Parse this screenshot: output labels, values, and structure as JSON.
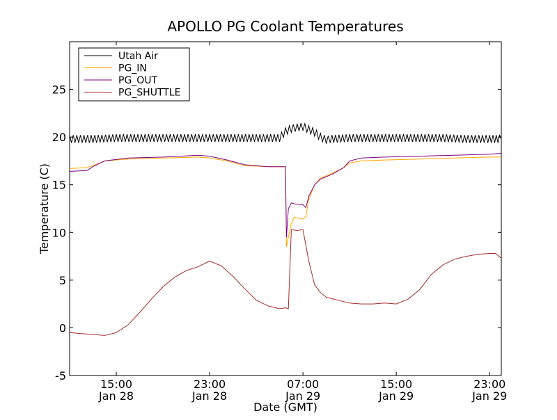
{
  "chart_data": {
    "type": "line",
    "title": "APOLLO PG Coolant Temperatures",
    "xlabel": "Date (GMT)",
    "ylabel": "Temperature (C)",
    "xlim": [
      "2013-01-28T11:00",
      "2013-01-30T00:00"
    ],
    "ylim": [
      -5,
      30
    ],
    "y_ticks": [
      -5,
      0,
      5,
      10,
      15,
      20,
      25
    ],
    "y_tick_labels": [
      "-5",
      "0",
      "5",
      "10",
      "15",
      "20",
      "25"
    ],
    "x_ticks": [
      {
        "x": "2013-01-28T15:00",
        "time": "15:00",
        "date": "Jan 28"
      },
      {
        "x": "2013-01-28T23:00",
        "time": "23:00",
        "date": "Jan 28"
      },
      {
        "x": "2013-01-29T07:00",
        "time": "07:00",
        "date": "Jan 29"
      },
      {
        "x": "2013-01-29T15:00",
        "time": "15:00",
        "date": "Jan 29"
      },
      {
        "x": "2013-01-29T23:00",
        "time": "23:00",
        "date": "Jan 29"
      }
    ],
    "grid": false,
    "legend_position": "top-left",
    "series": [
      {
        "name": "Utah Air",
        "color": "#000000",
        "oscillation_amplitude": 0.4,
        "x": [
          "2013-01-28T11:00",
          "2013-01-28T13:00",
          "2013-01-28T15:00",
          "2013-01-28T17:00",
          "2013-01-28T19:00",
          "2013-01-28T21:00",
          "2013-01-28T23:00",
          "2013-01-29T01:00",
          "2013-01-29T03:00",
          "2013-01-29T05:00",
          "2013-01-29T05:30",
          "2013-01-29T06:00",
          "2013-01-29T06:30",
          "2013-01-29T07:00",
          "2013-01-29T07:30",
          "2013-01-29T08:00",
          "2013-01-29T08:30",
          "2013-01-29T09:00",
          "2013-01-29T09:20",
          "2013-01-29T11:00",
          "2013-01-29T13:00",
          "2013-01-29T15:00",
          "2013-01-29T17:00",
          "2013-01-29T19:00",
          "2013-01-29T21:00",
          "2013-01-29T23:00",
          "2013-01-30T00:00"
        ],
        "y": [
          19.8,
          19.8,
          19.9,
          19.9,
          19.9,
          19.9,
          19.9,
          19.9,
          19.9,
          19.9,
          20.6,
          20.9,
          21.0,
          21.1,
          20.8,
          20.5,
          20.0,
          19.7,
          19.8,
          19.9,
          19.9,
          19.9,
          19.9,
          19.9,
          19.8,
          19.8,
          19.8
        ]
      },
      {
        "name": "PG_IN",
        "color": "#FFA500",
        "x": [
          "2013-01-28T11:00",
          "2013-01-28T12:30",
          "2013-01-28T13:00",
          "2013-01-28T14:00",
          "2013-01-28T16:00",
          "2013-01-28T19:00",
          "2013-01-28T22:00",
          "2013-01-28T23:00",
          "2013-01-29T00:30",
          "2013-01-29T02:00",
          "2013-01-29T04:00",
          "2013-01-29T05:30",
          "2013-01-29T05:35",
          "2013-01-29T05:45",
          "2013-01-29T06:00",
          "2013-01-29T06:15",
          "2013-01-29T07:00",
          "2013-01-29T07:15",
          "2013-01-29T07:30",
          "2013-01-29T08:00",
          "2013-01-29T08:30",
          "2013-01-29T09:30",
          "2013-01-29T10:30",
          "2013-01-29T11:00",
          "2013-01-29T12:00",
          "2013-01-29T14:00",
          "2013-01-29T17:00",
          "2013-01-29T20:00",
          "2013-01-29T23:00",
          "2013-01-30T00:00"
        ],
        "y": [
          16.7,
          16.8,
          17.0,
          17.5,
          17.7,
          17.8,
          17.9,
          17.8,
          17.5,
          17.0,
          16.9,
          16.9,
          8.5,
          9.5,
          10.9,
          11.6,
          11.4,
          11.7,
          13.5,
          15.0,
          15.7,
          16.2,
          16.8,
          17.3,
          17.5,
          17.6,
          17.7,
          17.8,
          17.9,
          17.9
        ]
      },
      {
        "name": "PG_OUT",
        "color": "#800080",
        "x": [
          "2013-01-28T11:00",
          "2013-01-28T12:30",
          "2013-01-28T13:00",
          "2013-01-28T14:00",
          "2013-01-28T16:00",
          "2013-01-28T19:00",
          "2013-01-28T22:00",
          "2013-01-28T23:00",
          "2013-01-29T00:30",
          "2013-01-29T02:00",
          "2013-01-29T04:00",
          "2013-01-29T05:30",
          "2013-01-29T05:35",
          "2013-01-29T05:45",
          "2013-01-29T06:00",
          "2013-01-29T06:15",
          "2013-01-29T07:00",
          "2013-01-29T07:15",
          "2013-01-29T07:30",
          "2013-01-29T08:00",
          "2013-01-29T08:30",
          "2013-01-29T09:30",
          "2013-01-29T10:30",
          "2013-01-29T11:00",
          "2013-01-29T12:00",
          "2013-01-29T14:00",
          "2013-01-29T17:00",
          "2013-01-29T20:00",
          "2013-01-29T23:00",
          "2013-01-30T00:00"
        ],
        "y": [
          16.4,
          16.5,
          16.9,
          17.5,
          17.8,
          17.9,
          18.1,
          18.0,
          17.6,
          17.1,
          16.9,
          16.9,
          9.5,
          12.5,
          13.1,
          13.0,
          12.9,
          12.6,
          13.8,
          15.0,
          15.6,
          16.1,
          16.8,
          17.5,
          17.8,
          17.9,
          18.0,
          18.1,
          18.2,
          18.3
        ]
      },
      {
        "name": "PG_SHUTTLE",
        "color": "#A52A2A",
        "x": [
          "2013-01-28T11:00",
          "2013-01-28T12:00",
          "2013-01-28T13:00",
          "2013-01-28T14:00",
          "2013-01-28T15:00",
          "2013-01-28T16:00",
          "2013-01-28T17:00",
          "2013-01-28T18:00",
          "2013-01-28T19:00",
          "2013-01-28T20:00",
          "2013-01-28T21:00",
          "2013-01-28T22:00",
          "2013-01-28T23:00",
          "2013-01-29T00:00",
          "2013-01-29T01:00",
          "2013-01-29T02:00",
          "2013-01-29T03:00",
          "2013-01-29T04:00",
          "2013-01-29T05:00",
          "2013-01-29T05:30",
          "2013-01-29T05:45",
          "2013-01-29T06:00",
          "2013-01-29T06:30",
          "2013-01-29T07:00",
          "2013-01-29T07:30",
          "2013-01-29T08:00",
          "2013-01-29T08:30",
          "2013-01-29T09:00",
          "2013-01-29T10:00",
          "2013-01-29T11:00",
          "2013-01-29T12:00",
          "2013-01-29T13:00",
          "2013-01-29T14:00",
          "2013-01-29T15:00",
          "2013-01-29T16:00",
          "2013-01-29T17:00",
          "2013-01-29T18:00",
          "2013-01-29T19:00",
          "2013-01-29T20:00",
          "2013-01-29T21:00",
          "2013-01-29T22:00",
          "2013-01-29T23:00",
          "2013-01-29T23:30",
          "2013-01-30T00:00"
        ],
        "y": [
          -0.5,
          -0.6,
          -0.7,
          -0.8,
          -0.5,
          0.3,
          1.6,
          3.0,
          4.3,
          5.3,
          6.0,
          6.4,
          7.0,
          6.5,
          5.4,
          4.1,
          2.9,
          2.3,
          2.0,
          2.1,
          2.0,
          10.3,
          10.2,
          10.3,
          7.0,
          4.5,
          3.7,
          3.2,
          2.9,
          2.6,
          2.5,
          2.5,
          2.6,
          2.5,
          3.0,
          4.0,
          5.6,
          6.6,
          7.2,
          7.5,
          7.7,
          7.8,
          7.8,
          7.3
        ]
      }
    ]
  }
}
